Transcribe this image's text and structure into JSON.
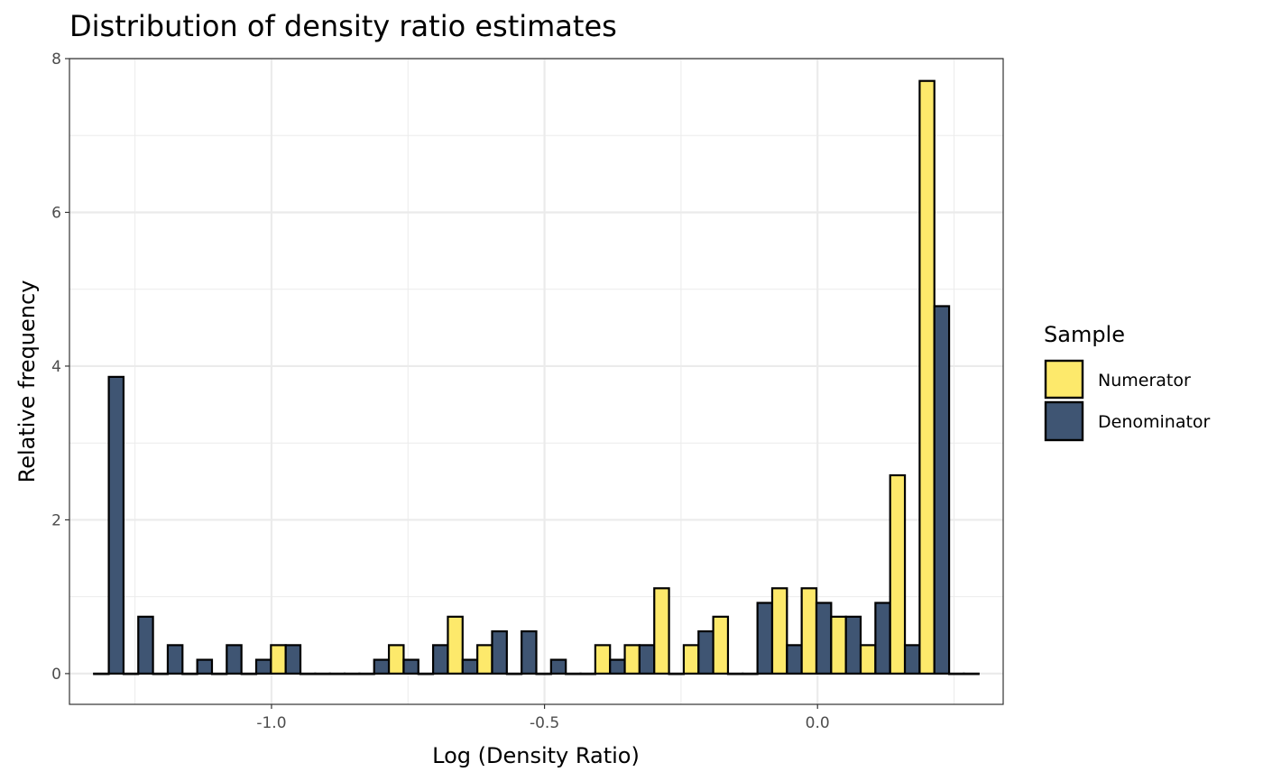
{
  "chart_data": {
    "type": "bar",
    "title": "Distribution of density ratio estimates",
    "xlabel": "Log (Density Ratio)",
    "ylabel": "Relative frequency",
    "xlim": [
      -1.37,
      0.34
    ],
    "ylim": [
      -0.4,
      8.0
    ],
    "x_ticks": [
      -1.0,
      -0.5,
      0.0
    ],
    "x_tick_labels": [
      "-1.0",
      "-0.5",
      "0.0"
    ],
    "y_ticks": [
      0,
      2,
      4,
      6,
      8
    ],
    "y_tick_labels": [
      "0",
      "2",
      "4",
      "6",
      "8"
    ],
    "grid": true,
    "legend": {
      "title": "Sample",
      "position": "right"
    },
    "bin_width": 0.054,
    "x": [
      -1.298,
      -1.244,
      -1.19,
      -1.136,
      -1.082,
      -1.028,
      -0.974,
      -0.92,
      -0.866,
      -0.812,
      -0.758,
      -0.704,
      -0.65,
      -0.596,
      -0.542,
      -0.488,
      -0.434,
      -0.38,
      -0.326,
      -0.272,
      -0.218,
      -0.164,
      -0.11,
      -0.056,
      -0.002,
      0.052,
      0.106,
      0.16,
      0.214,
      0.268
    ],
    "series": [
      {
        "name": "Numerator",
        "color": "#FDE96B",
        "values": [
          0,
          0,
          0,
          0,
          0,
          0,
          0.37,
          0,
          0,
          0,
          0.37,
          0,
          0.74,
          0.37,
          0,
          0,
          0,
          0.37,
          0.37,
          1.11,
          0.37,
          0.74,
          0,
          1.11,
          1.11,
          0.74,
          0.37,
          2.58,
          7.71,
          0
        ]
      },
      {
        "name": "Denominator",
        "color": "#3F5573",
        "values": [
          3.86,
          0.74,
          0.37,
          0.18,
          0.37,
          0.18,
          0.37,
          0,
          0,
          0.18,
          0.18,
          0.37,
          0.18,
          0.55,
          0.55,
          0.18,
          0,
          0.18,
          0.37,
          0,
          0.55,
          0,
          0.92,
          0.37,
          0.92,
          0.74,
          0.92,
          0.37,
          4.78,
          0
        ]
      }
    ]
  }
}
